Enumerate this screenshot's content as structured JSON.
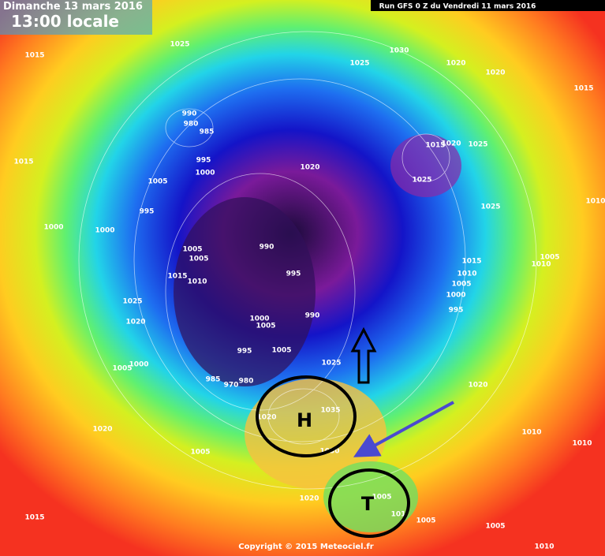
{
  "header": {
    "date": "Dimanche 13 mars 2016",
    "time": "13:00 locale",
    "run": "Run GFS 0 Z du Vendredi 11 mars 2016"
  },
  "annotations": {
    "high": "H",
    "low": "T"
  },
  "footer": "Copyright © 2015 Meteociel.fr",
  "isobar_labels": [
    "1025",
    "1015",
    "1025",
    "1030",
    "1020",
    "1020",
    "1015",
    "990",
    "980",
    "985",
    "995",
    "1000",
    "1015",
    "1020",
    "1025",
    "1015",
    "1005",
    "1020",
    "1025",
    "995",
    "1000",
    "1000",
    "1025",
    "1010",
    "1005",
    "1005",
    "990",
    "995",
    "1015",
    "1010",
    "1015",
    "1010",
    "1005",
    "1005",
    "1010",
    "1025",
    "1000",
    "995",
    "1020",
    "1000",
    "1005",
    "990",
    "995",
    "1005",
    "1000",
    "1005",
    "985",
    "970",
    "980",
    "1025",
    "1020",
    "1020",
    "1035",
    "1020",
    "1010",
    "1010",
    "1005",
    "1030",
    "1020",
    "1005",
    "101",
    "1005",
    "1015",
    "1005",
    "1010"
  ]
}
